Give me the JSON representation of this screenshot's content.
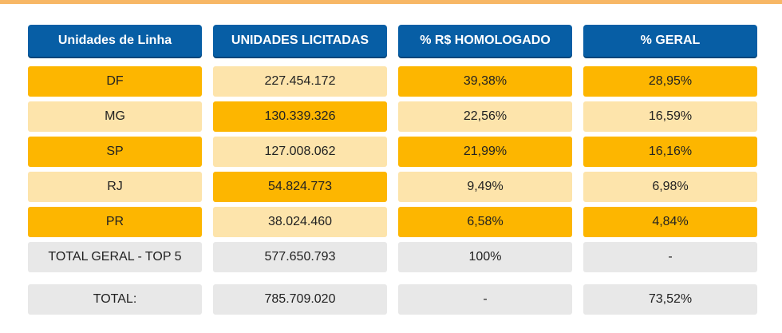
{
  "table": {
    "headers": [
      "Unidades de Linha",
      "UNIDADES LICITADAS",
      "% R$ HOMOLOGADO",
      "% GERAL"
    ],
    "rows": [
      [
        "DF",
        "227.454.172",
        "39,38%",
        "28,95%"
      ],
      [
        "MG",
        "130.339.326",
        "22,56%",
        "16,59%"
      ],
      [
        "SP",
        "127.008.062",
        "21,99%",
        "16,16%"
      ],
      [
        "RJ",
        "54.824.773",
        "9,49%",
        "6,98%"
      ],
      [
        "PR",
        "38.024.460",
        "6,58%",
        "4,84%"
      ],
      [
        "TOTAL GERAL - TOP 5",
        "577.650.793",
        "100%",
        "-"
      ],
      [
        "TOTAL:",
        "785.709.020",
        "-",
        "73,52%"
      ]
    ]
  },
  "colors": {
    "header_blue": "#075ea5",
    "dark_orange": "#fdb600",
    "light_orange": "#fde4ab",
    "grey": "#e8e8e8",
    "top_rule": "#f7b766"
  }
}
